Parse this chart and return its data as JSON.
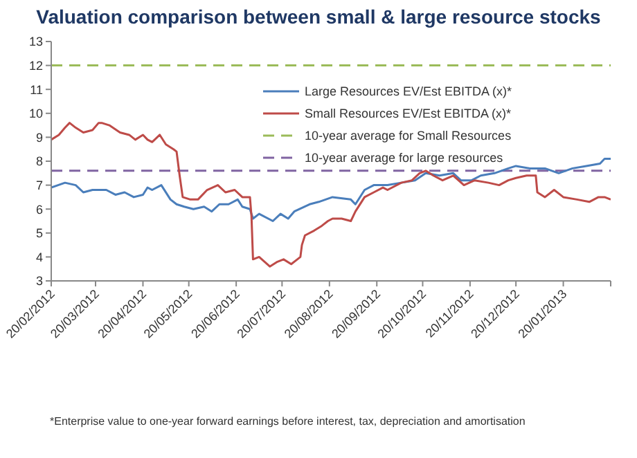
{
  "chart_data": {
    "type": "line",
    "title": "Valuation comparison between small & large resource stocks",
    "annotations": [
      "*Enterprise value to one-year forward earnings before interest, tax, depreciation and amortisation"
    ],
    "xlim": [
      "2012-02-20",
      "2013-02-20"
    ],
    "xticks": [
      {
        "value": "2012-02-20",
        "label": "20/02/2012"
      },
      {
        "value": "2012-03-20",
        "label": "20/03/2012"
      },
      {
        "value": "2012-04-20",
        "label": "20/04/2012"
      },
      {
        "value": "2012-05-20",
        "label": "20/05/2012"
      },
      {
        "value": "2012-06-20",
        "label": "20/06/2012"
      },
      {
        "value": "2012-07-20",
        "label": "20/07/2012"
      },
      {
        "value": "2012-08-20",
        "label": "20/08/2012"
      },
      {
        "value": "2012-09-20",
        "label": "20/09/2012"
      },
      {
        "value": "2012-10-20",
        "label": "20/10/2012"
      },
      {
        "value": "2012-11-20",
        "label": "20/11/2012"
      },
      {
        "value": "2012-12-20",
        "label": "20/12/2012"
      },
      {
        "value": "2013-01-20",
        "label": "20/01/2013"
      },
      {
        "value": "2013-02-20",
        "label": null
      }
    ],
    "ylim": [
      3,
      13
    ],
    "yticks": [
      3,
      4,
      5,
      6,
      7,
      8,
      9,
      10,
      11,
      12,
      13
    ],
    "legend": "top right",
    "line_style": "solid",
    "series": [
      {
        "name": "Large Resources EV/Est EBITDA (x)*",
        "color": "#4a7ebb",
        "x": [
          "2012-02-20",
          "2012-02-29",
          "2012-03-07",
          "2012-03-12",
          "2012-03-18",
          "2012-03-27",
          "2012-04-02",
          "2012-04-08",
          "2012-04-14",
          "2012-04-20",
          "2012-04-23",
          "2012-04-26",
          "2012-05-02",
          "2012-05-08",
          "2012-05-12",
          "2012-05-17",
          "2012-05-23",
          "2012-05-30",
          "2012-06-04",
          "2012-06-09",
          "2012-06-15",
          "2012-06-21",
          "2012-06-24",
          "2012-06-29",
          "2012-07-01",
          "2012-07-05",
          "2012-07-14",
          "2012-07-19",
          "2012-07-24",
          "2012-07-28",
          "2012-08-07",
          "2012-08-13",
          "2012-08-22",
          "2012-09-03",
          "2012-09-06",
          "2012-09-12",
          "2012-09-18",
          "2012-09-27",
          "2012-10-06",
          "2012-10-15",
          "2012-10-22",
          "2012-10-31",
          "2012-11-09",
          "2012-11-14",
          "2012-11-21",
          "2012-11-27",
          "2012-12-06",
          "2012-12-15",
          "2012-12-20",
          "2012-12-29",
          "2013-01-08",
          "2013-01-17",
          "2013-01-26",
          "2013-02-04",
          "2013-02-13",
          "2013-02-16",
          "2013-02-20"
        ],
        "values": [
          6.9,
          7.1,
          7.0,
          6.7,
          6.8,
          6.8,
          6.6,
          6.7,
          6.5,
          6.6,
          6.9,
          6.8,
          7.0,
          6.4,
          6.2,
          6.1,
          6.0,
          6.1,
          5.9,
          6.2,
          6.2,
          6.4,
          6.1,
          6.0,
          5.6,
          5.8,
          5.5,
          5.8,
          5.6,
          5.9,
          6.2,
          6.3,
          6.5,
          6.4,
          6.2,
          6.8,
          7.0,
          7.0,
          7.1,
          7.2,
          7.5,
          7.4,
          7.5,
          7.2,
          7.2,
          7.4,
          7.5,
          7.7,
          7.8,
          7.7,
          7.7,
          7.5,
          7.7,
          7.8,
          7.9,
          8.1,
          8.1
        ]
      },
      {
        "name": "Small Resources EV/Est EBITDA (x)*",
        "color": "#be4b48",
        "x": [
          "2012-02-20",
          "2012-02-25",
          "2012-02-29",
          "2012-03-03",
          "2012-03-07",
          "2012-03-12",
          "2012-03-18",
          "2012-03-22",
          "2012-03-24",
          "2012-03-29",
          "2012-04-05",
          "2012-04-11",
          "2012-04-15",
          "2012-04-20",
          "2012-04-23",
          "2012-04-26",
          "2012-05-01",
          "2012-05-05",
          "2012-05-10",
          "2012-05-12",
          "2012-05-14",
          "2012-05-16",
          "2012-05-21",
          "2012-05-26",
          "2012-06-01",
          "2012-06-08",
          "2012-06-13",
          "2012-06-19",
          "2012-06-24",
          "2012-06-29",
          "2012-06-30",
          "2012-07-01",
          "2012-07-05",
          "2012-07-12",
          "2012-07-17",
          "2012-07-21",
          "2012-07-26",
          "2012-07-30",
          "2012-08-01",
          "2012-08-02",
          "2012-08-04",
          "2012-08-10",
          "2012-08-15",
          "2012-08-19",
          "2012-08-22",
          "2012-08-28",
          "2012-09-03",
          "2012-09-06",
          "2012-09-12",
          "2012-09-18",
          "2012-09-24",
          "2012-09-27",
          "2012-10-06",
          "2012-10-13",
          "2012-10-18",
          "2012-10-22",
          "2012-10-27",
          "2012-11-02",
          "2012-11-09",
          "2012-11-16",
          "2012-11-23",
          "2012-12-02",
          "2012-12-09",
          "2012-12-15",
          "2012-12-20",
          "2012-12-27",
          "2013-01-02",
          "2013-01-03",
          "2013-01-08",
          "2013-01-14",
          "2013-01-20",
          "2013-01-29",
          "2013-02-06",
          "2013-02-12",
          "2013-02-16",
          "2013-02-20"
        ],
        "values": [
          8.9,
          9.1,
          9.4,
          9.6,
          9.4,
          9.2,
          9.3,
          9.6,
          9.6,
          9.5,
          9.2,
          9.1,
          8.9,
          9.1,
          8.9,
          8.8,
          9.1,
          8.7,
          8.5,
          8.4,
          7.4,
          6.5,
          6.4,
          6.4,
          6.8,
          7.0,
          6.7,
          6.8,
          6.5,
          6.5,
          5.7,
          3.9,
          4.0,
          3.6,
          3.8,
          3.9,
          3.7,
          3.9,
          4.0,
          4.5,
          4.9,
          5.1,
          5.3,
          5.5,
          5.6,
          5.6,
          5.5,
          5.9,
          6.5,
          6.7,
          6.9,
          6.8,
          7.1,
          7.2,
          7.5,
          7.6,
          7.4,
          7.2,
          7.4,
          7.0,
          7.2,
          7.1,
          7.0,
          7.2,
          7.3,
          7.4,
          7.4,
          6.7,
          6.5,
          6.8,
          6.5,
          6.4,
          6.3,
          6.5,
          6.5,
          6.4
        ]
      }
    ],
    "ref_lines": [
      {
        "axis": "y",
        "value": 12,
        "label": "10-year average for Small Resources",
        "color": "#9bbb59",
        "line_style": "dashed"
      },
      {
        "axis": "y",
        "value": 7.6,
        "label": "10-year average for large resources",
        "color": "#8064a2",
        "line_style": "dashed"
      }
    ]
  }
}
